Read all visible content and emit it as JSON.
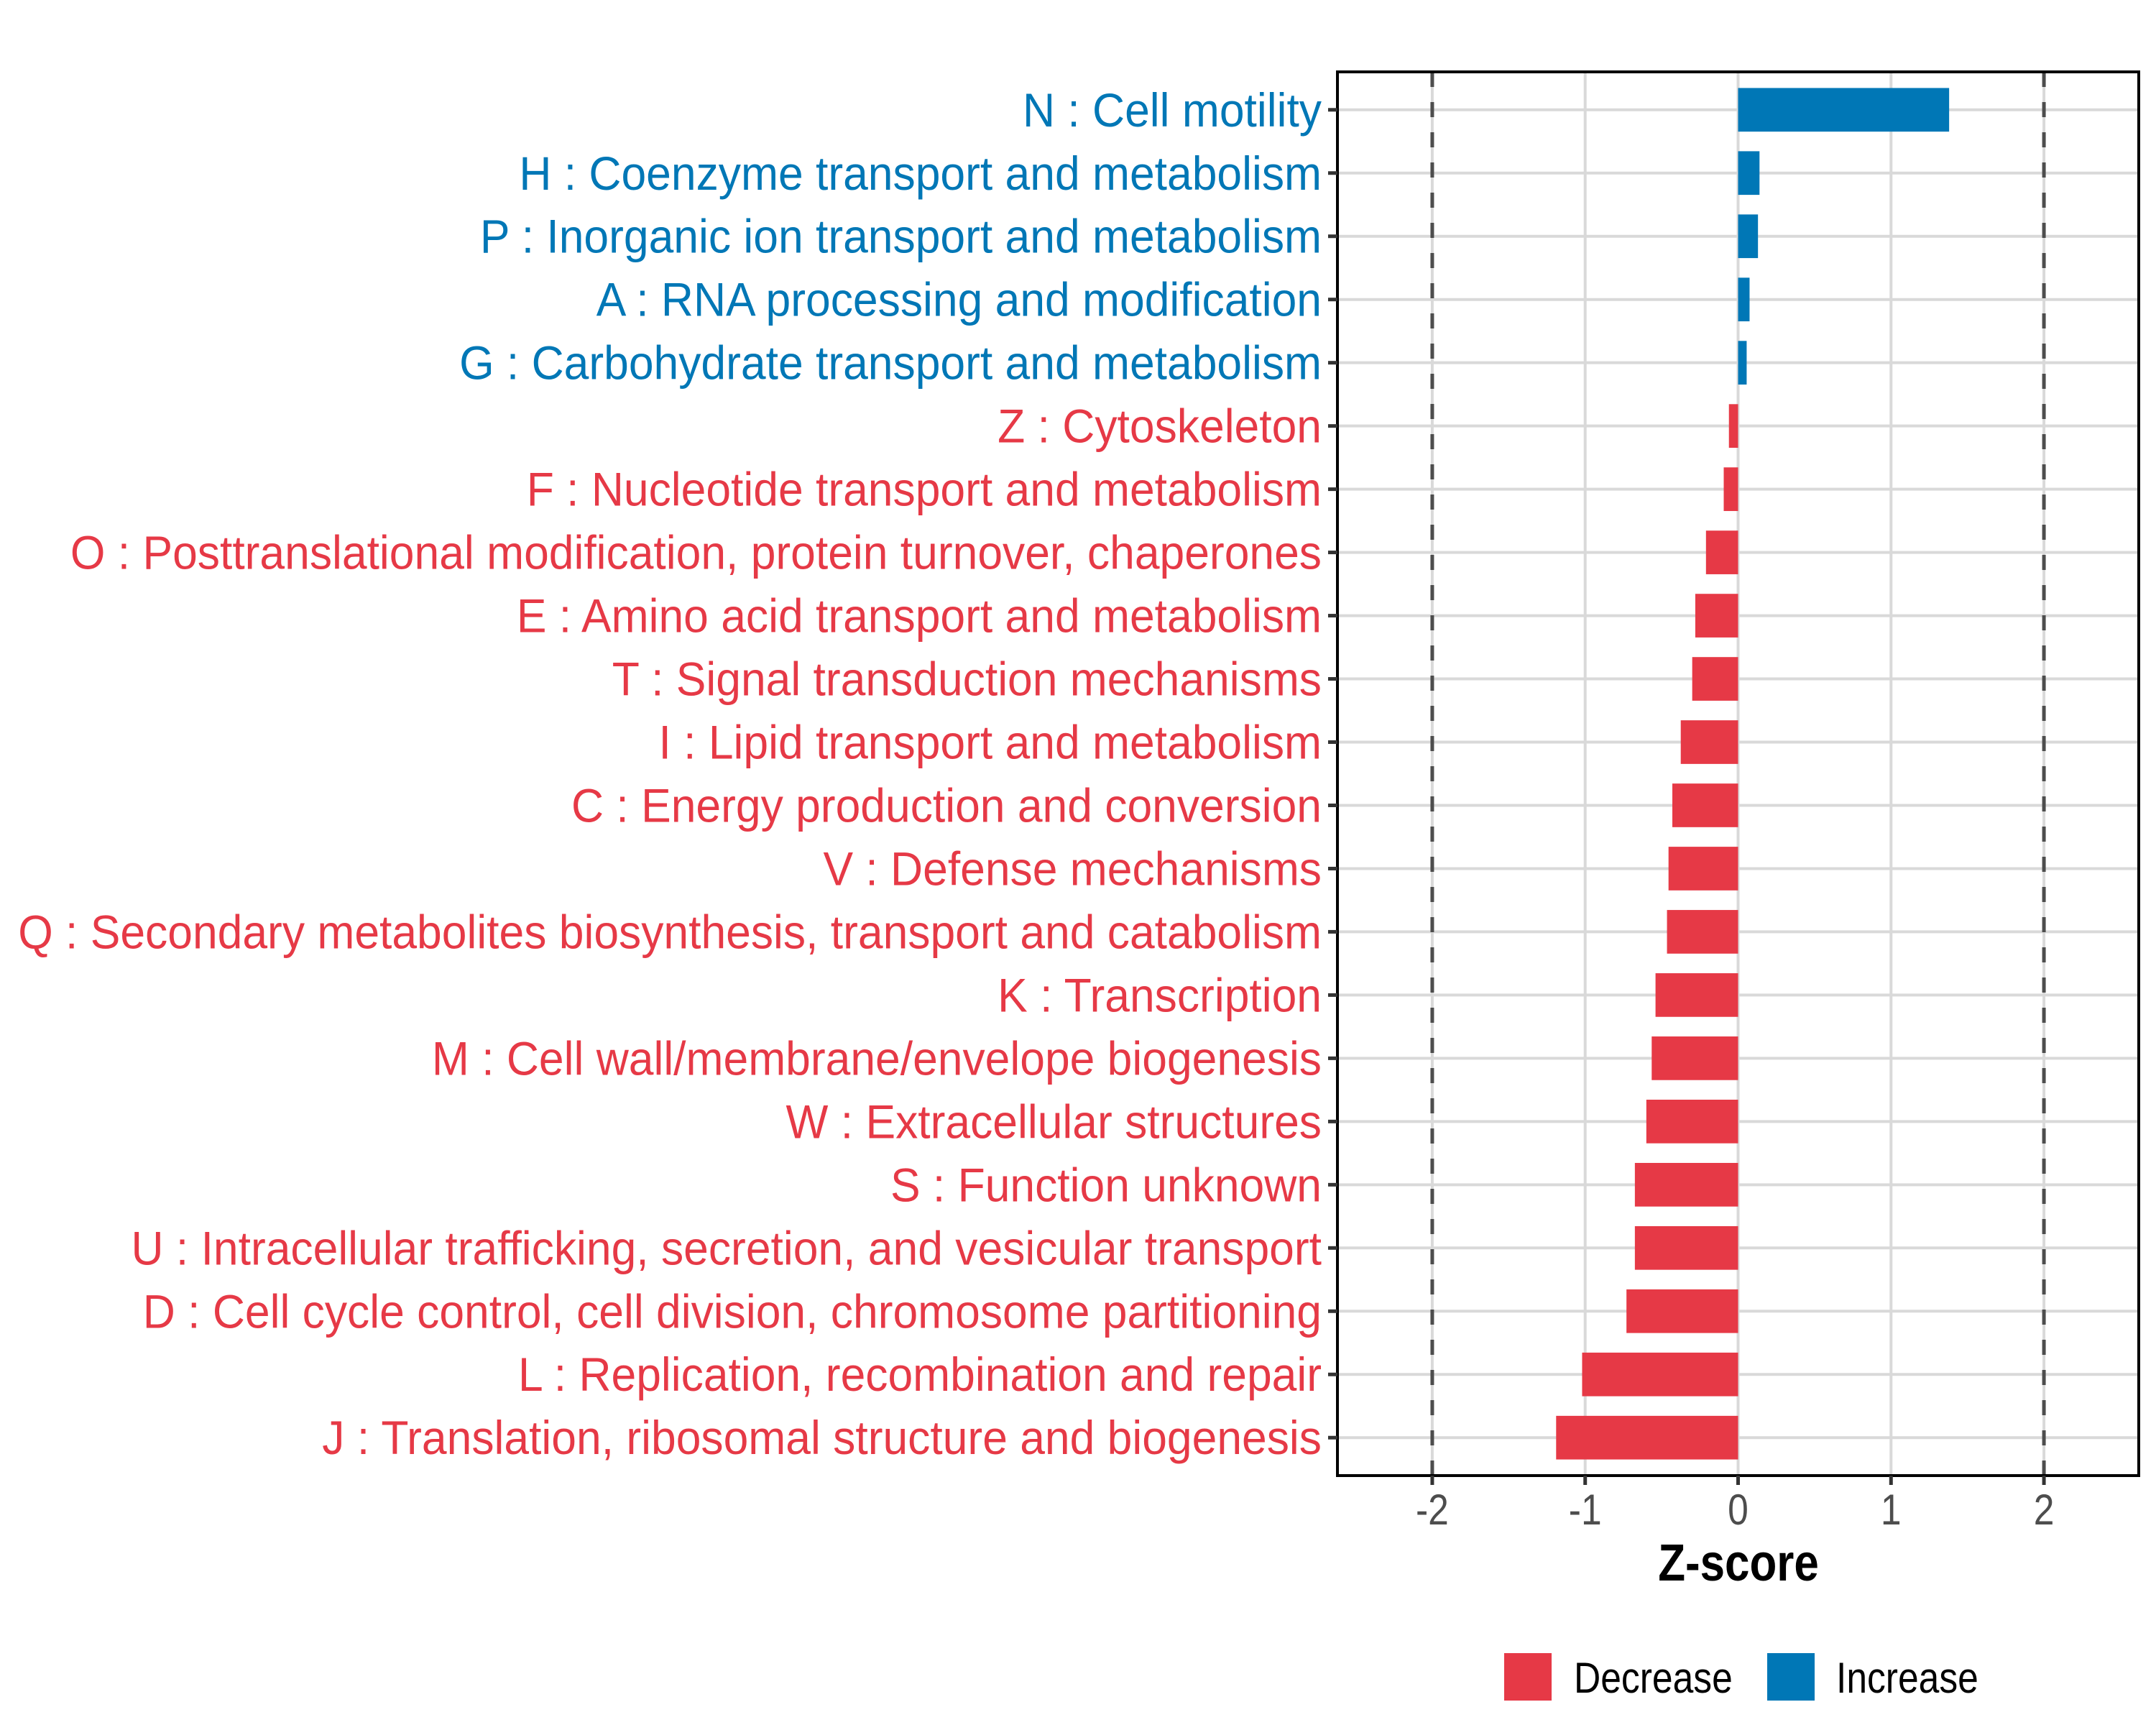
{
  "chart_data": {
    "type": "bar",
    "orientation": "horizontal",
    "title": "",
    "xlabel": "Z-score",
    "ylabel": "",
    "xlim": [
      -2.62,
      2.62
    ],
    "x_ticks": [
      -2,
      -1,
      0,
      1,
      2
    ],
    "x_tick_labels": [
      "-2",
      "-1",
      "0",
      "1",
      "2"
    ],
    "reference_lines": [
      -2,
      2
    ],
    "grid": true,
    "legend": {
      "placement": "bottom",
      "entries": [
        {
          "name": "Decrease",
          "color": "#E63946"
        },
        {
          "name": "Increase",
          "color": "#0077B6"
        }
      ]
    },
    "categories": [
      "N : Cell motility",
      "H : Coenzyme transport and metabolism",
      "P : Inorganic ion transport and metabolism",
      "A : RNA processing and modification",
      "G : Carbohydrate transport and metabolism",
      "Z : Cytoskeleton",
      "F : Nucleotide transport and metabolism",
      "O : Posttranslational modification, protein turnover, chaperones",
      "E : Amino acid transport and metabolism",
      "T : Signal transduction mechanisms",
      "I : Lipid transport and metabolism",
      "C : Energy production and conversion",
      "V : Defense mechanisms",
      "Q : Secondary metabolites biosynthesis, transport and catabolism",
      "K : Transcription",
      "M : Cell wall/membrane/envelope biogenesis",
      "W : Extracellular structures",
      "S : Function unknown",
      "U : Intracellular trafficking, secretion, and vesicular transport",
      "D : Cell cycle control, cell division, chromosome partitioning",
      "L : Replication, recombination and repair",
      "J : Translation, ribosomal structure and biogenesis"
    ],
    "values": [
      1.38,
      0.14,
      0.13,
      0.075,
      0.056,
      -0.06,
      -0.094,
      -0.21,
      -0.28,
      -0.3,
      -0.375,
      -0.43,
      -0.455,
      -0.465,
      -0.54,
      -0.565,
      -0.6,
      -0.675,
      -0.675,
      -0.73,
      -1.02,
      -1.19
    ],
    "groups": [
      "Increase",
      "Increase",
      "Increase",
      "Increase",
      "Increase",
      "Decrease",
      "Decrease",
      "Decrease",
      "Decrease",
      "Decrease",
      "Decrease",
      "Decrease",
      "Decrease",
      "Decrease",
      "Decrease",
      "Decrease",
      "Decrease",
      "Decrease",
      "Decrease",
      "Decrease",
      "Decrease",
      "Decrease"
    ]
  },
  "colors": {
    "Decrease": "#E63946",
    "Increase": "#0077B6"
  }
}
